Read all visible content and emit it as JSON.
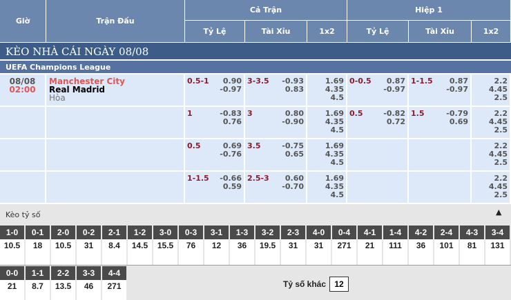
{
  "header": {
    "time": "Giờ",
    "match": "Trận Đấu",
    "full": "Cả Trận",
    "half": "Hiệp 1",
    "handicap": "Tỷ Lệ",
    "overunder": "Tài Xỉu",
    "x12": "1x2"
  },
  "banner": "KÈO NHÀ CÁI NGÀY 08/08",
  "league": "UEFA Champions League",
  "match": {
    "date": "08/08",
    "time": "02:00",
    "home": "Manchester City",
    "away": "Real Madrid",
    "draw": "Hòa"
  },
  "rows": [
    {
      "ft_hdp": "0.5-1",
      "ft_hdp_o": [
        "0.90",
        "-0.97"
      ],
      "ft_ou": "3-3.5",
      "ft_ou_o": [
        "-0.93",
        "0.83"
      ],
      "ft_1x2": [
        "1.69",
        "4.35",
        "4.5"
      ],
      "h1_hdp": "0-0.5",
      "h1_hdp_o": [
        "0.87",
        "-0.97"
      ],
      "h1_ou": "1-1.5",
      "h1_ou_o": [
        "0.87",
        "-0.97"
      ],
      "h1_1x2": [
        "2.2",
        "4.45",
        "2.5"
      ]
    },
    {
      "ft_hdp": "1",
      "ft_hdp_o": [
        "-0.83",
        "0.76"
      ],
      "ft_ou": "3",
      "ft_ou_o": [
        "0.80",
        "-0.90"
      ],
      "ft_1x2": [
        "1.69",
        "4.35",
        "4.5"
      ],
      "h1_hdp": "0.5",
      "h1_hdp_o": [
        "-0.82",
        "0.72"
      ],
      "h1_ou": "1.5",
      "h1_ou_o": [
        "-0.79",
        "0.69"
      ],
      "h1_1x2": [
        "2.2",
        "4.45",
        "2.5"
      ]
    },
    {
      "ft_hdp": "0.5",
      "ft_hdp_o": [
        "0.69",
        "-0.76"
      ],
      "ft_ou": "3.5",
      "ft_ou_o": [
        "-0.75",
        "0.65"
      ],
      "ft_1x2": [
        "1.69",
        "4.35",
        "4.5"
      ],
      "h1_hdp": "",
      "h1_hdp_o": [
        "",
        ""
      ],
      "h1_ou": "",
      "h1_ou_o": [
        "",
        ""
      ],
      "h1_1x2": [
        "2.2",
        "4.45",
        "2.5"
      ]
    },
    {
      "ft_hdp": "1-1.5",
      "ft_hdp_o": [
        "-0.66",
        "0.59"
      ],
      "ft_ou": "2.5-3",
      "ft_ou_o": [
        "0.60",
        "-0.70"
      ],
      "ft_1x2": [
        "1.69",
        "4.35",
        "4.5"
      ],
      "h1_hdp": "",
      "h1_hdp_o": [
        "",
        ""
      ],
      "h1_ou": "",
      "h1_ou_o": [
        "",
        ""
      ],
      "h1_1x2": [
        "2.2",
        "4.45",
        "2.5"
      ]
    }
  ],
  "scores": {
    "title": "Kèo tỷ số",
    "collapse_icon": "triangle-up-icon",
    "row1": [
      [
        "1-0",
        "10.5"
      ],
      [
        "0-1",
        "18"
      ],
      [
        "2-0",
        "10.5"
      ],
      [
        "0-2",
        "31"
      ],
      [
        "2-1",
        "8.4"
      ],
      [
        "1-2",
        "14.5"
      ],
      [
        "3-0",
        "15.5"
      ],
      [
        "0-3",
        "76"
      ],
      [
        "3-1",
        "12"
      ],
      [
        "1-3",
        "36"
      ],
      [
        "3-2",
        "19.5"
      ],
      [
        "2-3",
        "31"
      ],
      [
        "4-0",
        "31"
      ],
      [
        "0-4",
        "271"
      ],
      [
        "4-1",
        "21"
      ],
      [
        "1-4",
        "111"
      ],
      [
        "4-2",
        "36"
      ],
      [
        "2-4",
        "101"
      ],
      [
        "4-3",
        "81"
      ],
      [
        "3-4",
        "131"
      ]
    ],
    "row2": [
      [
        "0-0",
        "21"
      ],
      [
        "1-1",
        "8.7"
      ],
      [
        "2-2",
        "13.5"
      ],
      [
        "3-3",
        "46"
      ],
      [
        "4-4",
        "271"
      ]
    ],
    "other_label": "Tỷ số khác",
    "other_value": "12"
  },
  "colors": {
    "header": "#6c87ad",
    "banner": "#3d5d88",
    "league": "#5672a0",
    "row": "#dde8f8",
    "team_home": "#e05555",
    "line": "#8a1c2b"
  }
}
